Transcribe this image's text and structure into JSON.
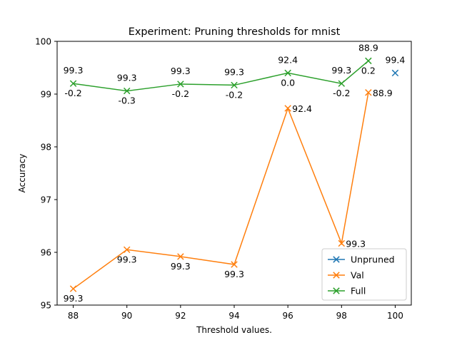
{
  "chart_data": {
    "type": "line",
    "title": "Experiment: Pruning thresholds for mnist",
    "xlabel": "Threshold values.",
    "ylabel": "Accuracy",
    "xlim": [
      87.4,
      100.6
    ],
    "ylim": [
      95,
      100
    ],
    "xticks": [
      "88",
      "90",
      "92",
      "94",
      "96",
      "98",
      "100"
    ],
    "yticks": [
      "95",
      "96",
      "97",
      "98",
      "99",
      "100"
    ],
    "grid": false,
    "legend_position": "lower-right",
    "series": [
      {
        "name": "Unpruned",
        "color": "#1f77b4",
        "marker": "x",
        "x": [
          100
        ],
        "y": [
          99.4
        ],
        "labels": [
          "99.4"
        ],
        "label_pos": [
          "above"
        ]
      },
      {
        "name": "Val",
        "color": "#ff7f0e",
        "marker": "x",
        "x": [
          88,
          90,
          92,
          94,
          96,
          98,
          99
        ],
        "y": [
          95.31,
          96.05,
          95.92,
          95.77,
          98.73,
          96.17,
          99.03
        ],
        "labels": [
          "99.3",
          "99.3",
          "99.3",
          "99.3",
          "92.4",
          "99.3",
          "88.9"
        ],
        "label_pos": [
          "below",
          "below",
          "below",
          "below",
          "right",
          "right",
          "right"
        ]
      },
      {
        "name": "Full",
        "color": "#2ca02c",
        "marker": "x",
        "x": [
          88,
          90,
          92,
          94,
          96,
          98,
          99
        ],
        "y": [
          99.2,
          99.06,
          99.19,
          99.17,
          99.4,
          99.2,
          99.63
        ],
        "labels": [
          "99.3",
          "99.3",
          "99.3",
          "99.3",
          "92.4",
          "99.3",
          "88.9"
        ],
        "label_pos": [
          "above",
          "above",
          "above",
          "above",
          "above",
          "above",
          "above"
        ],
        "labels2": [
          "-0.2",
          "-0.3",
          "-0.2",
          "-0.2",
          "0.0",
          "-0.2",
          "0.2"
        ],
        "label2_pos": [
          "below",
          "below",
          "below",
          "below",
          "below",
          "below",
          "below"
        ]
      }
    ]
  }
}
